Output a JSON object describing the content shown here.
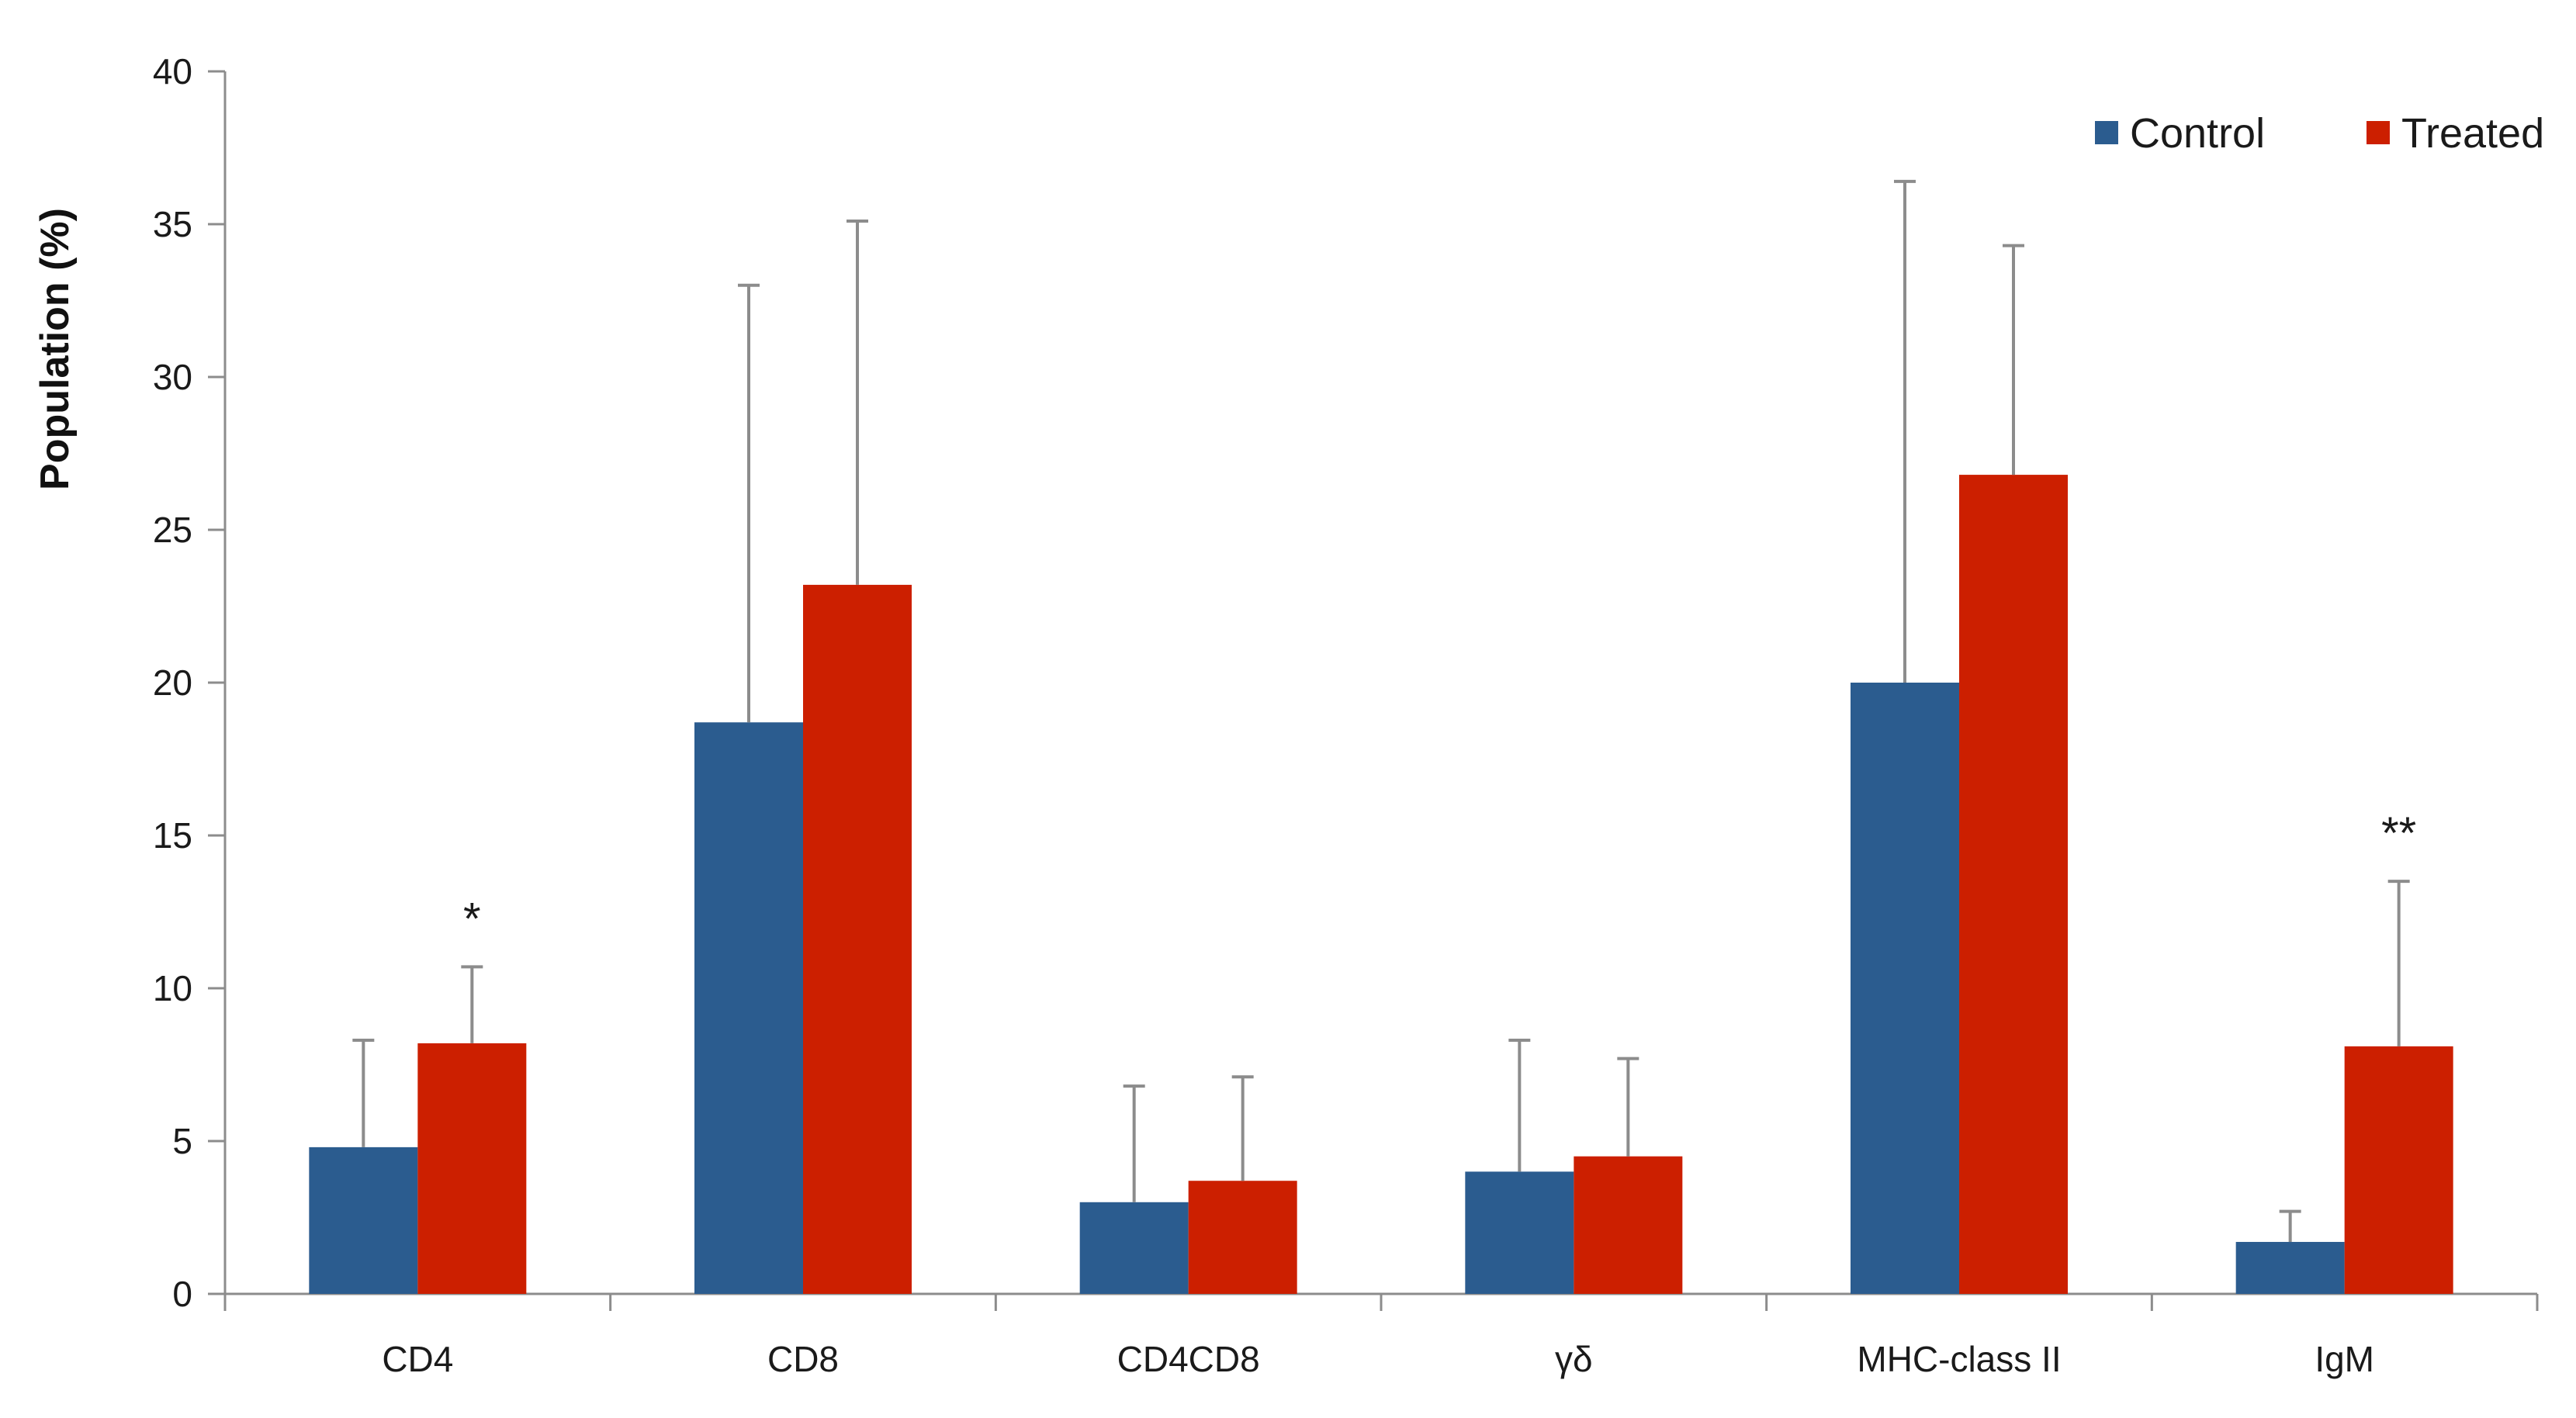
{
  "chart_data": {
    "type": "bar",
    "title": "",
    "xlabel": "",
    "ylabel": "Population (%)",
    "ylim": [
      0,
      40
    ],
    "yticks": [
      0,
      5,
      10,
      15,
      20,
      25,
      30,
      35,
      40
    ],
    "grid": false,
    "legend_position": "top-right",
    "categories": [
      "CD4",
      "CD8",
      "CD4CD8",
      "γδ",
      "MHC-class II",
      "IgM"
    ],
    "series": [
      {
        "name": "Control",
        "color": "#2b5c8f",
        "values": [
          4.8,
          18.7,
          3.0,
          4.0,
          20.0,
          1.7
        ],
        "error_upper": [
          8.3,
          33.0,
          6.8,
          8.3,
          36.4,
          2.7
        ]
      },
      {
        "name": "Treated",
        "color": "#cc1f00",
        "values": [
          8.2,
          23.2,
          3.7,
          4.5,
          26.8,
          8.1
        ],
        "error_upper": [
          10.7,
          35.1,
          7.1,
          7.7,
          34.3,
          13.5
        ]
      }
    ],
    "annotations": [
      {
        "text": "*",
        "category": "CD4",
        "series": "Treated"
      },
      {
        "text": "**",
        "category": "IgM",
        "series": "Treated"
      }
    ]
  }
}
